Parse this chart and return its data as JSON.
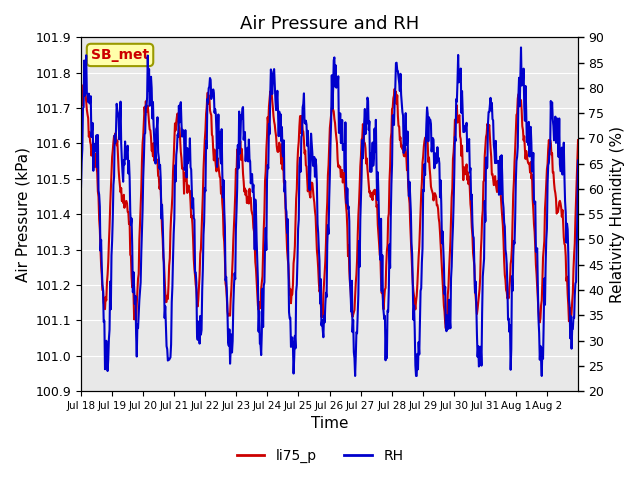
{
  "title": "Air Pressure and RH",
  "ylabel_left": "Air Pressure (kPa)",
  "ylabel_right": "Relativity Humidity (%)",
  "xlabel": "Time",
  "ylim_left": [
    100.9,
    101.9
  ],
  "ylim_right": [
    20,
    90
  ],
  "yticks_left": [
    100.9,
    101.0,
    101.1,
    101.2,
    101.3,
    101.4,
    101.5,
    101.6,
    101.7,
    101.8,
    101.9
  ],
  "yticks_right": [
    20,
    25,
    30,
    35,
    40,
    45,
    50,
    55,
    60,
    65,
    70,
    75,
    80,
    85,
    90
  ],
  "xtick_labels": [
    "Jul 18",
    "Jul 19",
    "Jul 20",
    "Jul 21",
    "Jul 22",
    "Jul 23",
    "Jul 24",
    "Jul 25",
    "Jul 26",
    "Jul 27",
    "Jul 28",
    "Jul 29",
    "Jul 30",
    "Jul 31",
    "Aug 1",
    "Aug 2"
  ],
  "xtick_positions": [
    0,
    1,
    2,
    3,
    4,
    5,
    6,
    7,
    8,
    9,
    10,
    11,
    12,
    13,
    14,
    15
  ],
  "color_pressure": "#cc0000",
  "color_rh": "#0000cc",
  "line_width": 1.5,
  "background_plot": "#e8e8e8",
  "background_fig": "#ffffff",
  "label_box_text": "SB_met",
  "label_box_facecolor": "#ffffaa",
  "label_box_edgecolor": "#999900",
  "label_box_textcolor": "#cc0000",
  "legend_labels": [
    "li75_p",
    "RH"
  ],
  "grid_color": "#ffffff",
  "title_fontsize": 13,
  "axis_fontsize": 11
}
